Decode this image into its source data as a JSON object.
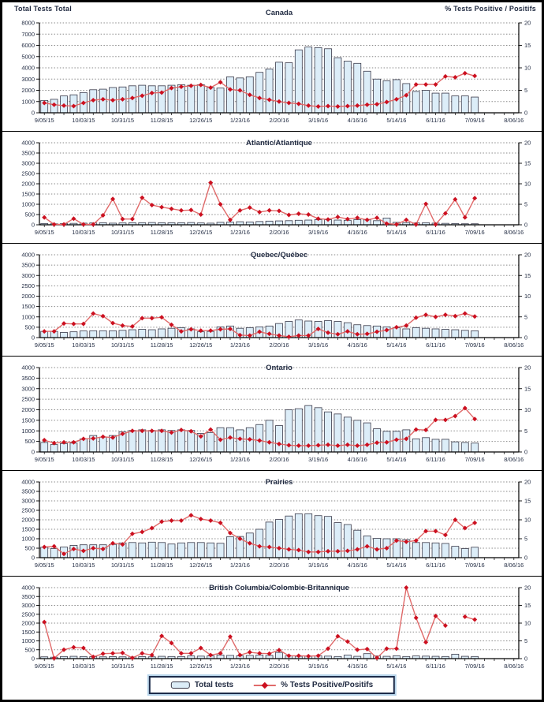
{
  "header": {
    "left_axis_title": "Total Tests Total",
    "right_axis_title": "% Tests Positive / Positifs"
  },
  "legend": {
    "bars_label": "Total tests",
    "line_label": "% Tests Positive/Positifs"
  },
  "colors": {
    "bar_fill": "#dcedf8",
    "bar_stroke": "#3a3a4a",
    "line": "#e06a6a",
    "marker": "#cc1020",
    "grid": "#8a8a8a",
    "text": "#1f2940",
    "axis": "#000000"
  },
  "x_axis": {
    "slots": 49,
    "label_every": 4,
    "tick_labels": [
      "9/05/15",
      "10/03/15",
      "10/31/15",
      "11/28/15",
      "12/26/15",
      "1/23/16",
      "2/20/16",
      "3/19/16",
      "4/16/16",
      "5/14/16",
      "6/11/16",
      "7/09/16",
      "8/06/16"
    ]
  },
  "chart_data": [
    {
      "type": "bar+line",
      "title": "Canada",
      "ylabel_left": "Total Tests Total",
      "ylabel_right": "% Tests Positive / Positifs",
      "left_ylim": [
        0,
        8000
      ],
      "left_ticks": [
        0,
        1000,
        2000,
        3000,
        4000,
        5000,
        6000,
        7000,
        8000
      ],
      "right_ylim": [
        0,
        20
      ],
      "right_ticks": [
        0,
        5,
        10,
        15,
        20
      ],
      "bars": [
        1100,
        1200,
        1500,
        1600,
        1800,
        2050,
        2100,
        2250,
        2300,
        2400,
        2450,
        2400,
        2400,
        2450,
        2500,
        2450,
        2500,
        2250,
        2200,
        3200,
        3100,
        3200,
        3600,
        3900,
        4500,
        4450,
        5600,
        5850,
        5800,
        5700,
        4900,
        4600,
        4400,
        3700,
        3000,
        2850,
        2950,
        2600,
        1900,
        2000,
        1750,
        1750,
        1500,
        1500,
        1400
      ],
      "pct": [
        2.2,
        1.8,
        1.6,
        1.5,
        2.2,
        2.8,
        3.0,
        2.8,
        3.0,
        3.3,
        3.8,
        4.4,
        4.5,
        5.5,
        5.8,
        6.0,
        6.2,
        5.6,
        6.8,
        5.2,
        5.0,
        4.0,
        3.3,
        2.9,
        2.5,
        2.2,
        2.0,
        1.6,
        1.4,
        1.5,
        1.4,
        1.5,
        1.6,
        1.8,
        1.9,
        2.4,
        3.0,
        3.9,
        6.3,
        6.3,
        6.3,
        8.1,
        7.9,
        8.8,
        8.2
      ]
    },
    {
      "type": "bar+line",
      "title": "Atlantic/Atlantique",
      "left_ylim": [
        0,
        4000
      ],
      "left_ticks": [
        0,
        500,
        1000,
        1500,
        2000,
        2500,
        3000,
        3500,
        4000
      ],
      "right_ylim": [
        0,
        20
      ],
      "right_ticks": [
        0,
        5,
        10,
        15,
        20
      ],
      "bars": [
        60,
        50,
        60,
        70,
        80,
        90,
        100,
        80,
        90,
        100,
        100,
        110,
        100,
        100,
        100,
        110,
        90,
        80,
        120,
        130,
        150,
        140,
        160,
        180,
        190,
        200,
        220,
        230,
        250,
        250,
        230,
        220,
        250,
        240,
        200,
        330,
        120,
        100,
        90,
        100,
        80,
        70,
        60,
        50,
        50
      ],
      "pct": [
        1.8,
        0.1,
        0.1,
        1.5,
        0.1,
        0.1,
        2.3,
        6.3,
        1.4,
        1.4,
        6.6,
        4.8,
        4.3,
        3.9,
        3.5,
        3.6,
        2.5,
        10.3,
        5.0,
        1.2,
        3.5,
        4.2,
        3.1,
        3.5,
        3.4,
        2.4,
        2.7,
        2.5,
        1.5,
        1.3,
        1.9,
        1.4,
        1.7,
        1.2,
        1.7,
        0.3,
        0.1,
        1.2,
        0.1,
        5.1,
        0.1,
        2.8,
        6.2,
        1.8,
        6.5
      ]
    },
    {
      "type": "bar+line",
      "title": "Quebec/Québec",
      "left_ylim": [
        0,
        4000
      ],
      "left_ticks": [
        0,
        500,
        1000,
        1500,
        2000,
        2500,
        3000,
        3500,
        4000
      ],
      "right_ylim": [
        0,
        20
      ],
      "right_ticks": [
        0,
        5,
        10,
        15,
        20
      ],
      "bars": [
        300,
        300,
        250,
        280,
        320,
        330,
        330,
        330,
        350,
        380,
        400,
        380,
        420,
        450,
        480,
        420,
        280,
        300,
        520,
        560,
        450,
        480,
        520,
        560,
        680,
        780,
        850,
        800,
        780,
        820,
        780,
        720,
        620,
        580,
        560,
        520,
        480,
        420,
        480,
        450,
        420,
        400,
        380,
        350,
        330
      ],
      "pct": [
        1.5,
        1.5,
        3.4,
        3.3,
        3.3,
        5.8,
        5.2,
        3.5,
        2.9,
        2.7,
        4.7,
        4.7,
        4.9,
        3.1,
        1.5,
        2.0,
        1.7,
        1.7,
        2.0,
        2.1,
        0.6,
        0.5,
        1.4,
        0.9,
        0.5,
        0.2,
        0.5,
        0.5,
        2.1,
        1.2,
        0.8,
        1.5,
        0.8,
        0.9,
        1.4,
        1.8,
        2.5,
        2.9,
        4.8,
        5.5,
        5.0,
        5.5,
        5.2,
        5.8,
        5.1
      ]
    },
    {
      "type": "bar+line",
      "title": "Ontario",
      "left_ylim": [
        0,
        4000
      ],
      "left_ticks": [
        0,
        500,
        1000,
        1500,
        2000,
        2500,
        3000,
        3500,
        4000
      ],
      "right_ylim": [
        0,
        20
      ],
      "right_ticks": [
        0,
        5,
        10,
        15,
        20
      ],
      "bars": [
        450,
        350,
        400,
        420,
        620,
        780,
        700,
        780,
        950,
        1020,
        1050,
        1020,
        1050,
        1020,
        1050,
        1020,
        880,
        920,
        1150,
        1150,
        1050,
        1150,
        1300,
        1500,
        1250,
        2000,
        2050,
        2200,
        2100,
        1900,
        1800,
        1650,
        1500,
        1380,
        1100,
        980,
        980,
        1050,
        620,
        680,
        600,
        600,
        480,
        450,
        420
      ],
      "pct": [
        2.8,
        2.1,
        2.3,
        2.3,
        3.1,
        3.2,
        3.6,
        3.4,
        4.3,
        5.0,
        5.0,
        5.0,
        5.0,
        4.6,
        5.2,
        4.9,
        3.7,
        5.3,
        2.9,
        3.4,
        3.1,
        3.0,
        2.7,
        2.3,
        1.9,
        1.6,
        1.5,
        1.5,
        1.6,
        1.7,
        1.5,
        1.7,
        1.5,
        1.7,
        2.2,
        2.3,
        2.9,
        3.1,
        5.3,
        5.2,
        7.6,
        7.6,
        8.5,
        10.4,
        7.8
      ]
    },
    {
      "type": "bar+line",
      "title": "Prairies",
      "left_ylim": [
        0,
        4000
      ],
      "left_ticks": [
        0,
        500,
        1000,
        1500,
        2000,
        2500,
        3000,
        3500,
        4000
      ],
      "right_ylim": [
        0,
        20
      ],
      "right_ticks": [
        0,
        5,
        10,
        15,
        20
      ],
      "bars": [
        550,
        480,
        560,
        650,
        680,
        680,
        680,
        700,
        780,
        800,
        780,
        820,
        800,
        720,
        780,
        800,
        800,
        780,
        760,
        1100,
        1120,
        1300,
        1500,
        1880,
        2020,
        2200,
        2320,
        2320,
        2220,
        2180,
        1850,
        1750,
        1450,
        1150,
        1020,
        1000,
        1000,
        950,
        800,
        800,
        780,
        750,
        600,
        480,
        550
      ],
      "pct": [
        2.8,
        3.0,
        1.0,
        2.3,
        1.8,
        2.5,
        2.3,
        3.8,
        3.5,
        6.3,
        6.8,
        7.8,
        9.5,
        9.8,
        9.8,
        11.2,
        10.2,
        9.8,
        9.2,
        6.5,
        5.0,
        3.8,
        3.0,
        2.8,
        2.5,
        2.2,
        2.0,
        1.5,
        1.5,
        1.7,
        1.7,
        1.8,
        2.2,
        3.0,
        2.2,
        2.5,
        4.5,
        4.2,
        4.5,
        7.0,
        7.0,
        6.0,
        10.0,
        7.8,
        9.2
      ]
    },
    {
      "type": "bar+line",
      "title": "British Columbia/Colombie-Britannique",
      "left_ylim": [
        0,
        4000
      ],
      "left_ticks": [
        0,
        500,
        1000,
        1500,
        2000,
        2500,
        3000,
        3500,
        4000
      ],
      "right_ylim": [
        0,
        20
      ],
      "right_ticks": [
        0,
        5,
        10,
        15,
        20
      ],
      "bars": [
        100,
        80,
        120,
        130,
        120,
        110,
        100,
        110,
        100,
        100,
        110,
        100,
        130,
        120,
        120,
        150,
        140,
        160,
        200,
        180,
        160,
        180,
        200,
        180,
        350,
        160,
        130,
        140,
        160,
        140,
        120,
        200,
        130,
        280,
        150,
        130,
        160,
        120,
        150,
        140,
        130,
        120,
        250,
        130,
        120
      ],
      "pct": [
        10.3,
        0.1,
        2.5,
        3.2,
        3.0,
        0.5,
        1.4,
        1.5,
        1.6,
        0.2,
        1.5,
        1.0,
        6.4,
        4.4,
        1.5,
        1.5,
        3.0,
        1.0,
        1.5,
        6.2,
        1.0,
        1.8,
        1.5,
        1.4,
        2.4,
        0.8,
        0.8,
        0.7,
        0.8,
        2.8,
        6.3,
        4.8,
        2.5,
        2.7,
        0.2,
        2.8,
        2.8,
        20.0,
        11.5,
        4.6,
        12.0,
        9.3,
        null,
        11.8,
        11.0
      ]
    }
  ]
}
